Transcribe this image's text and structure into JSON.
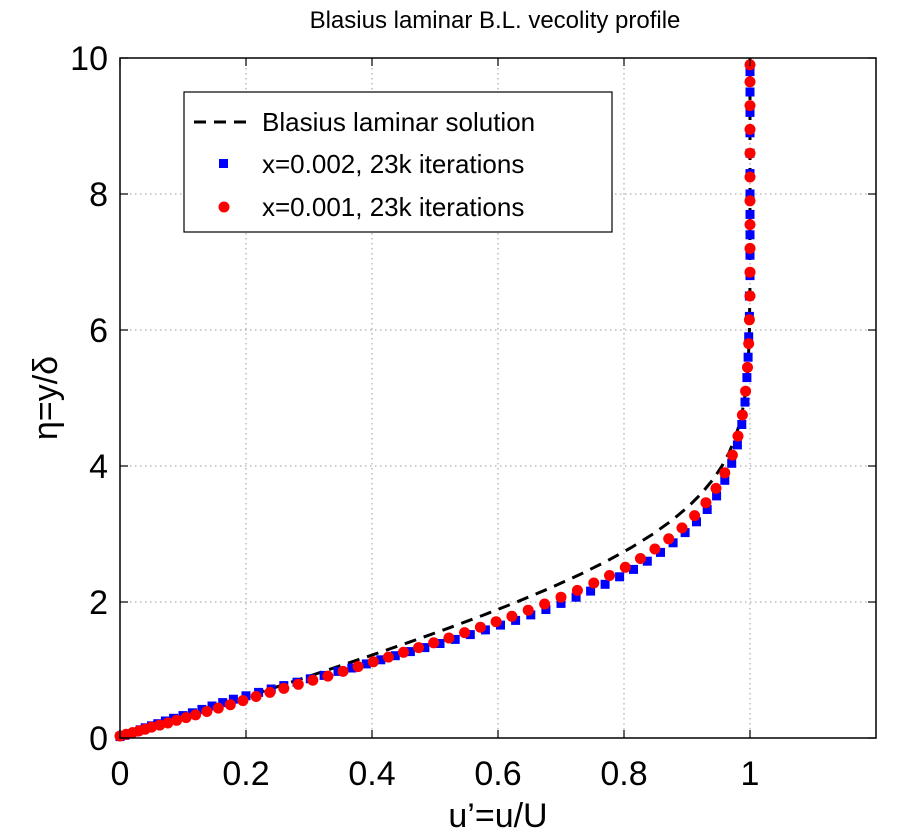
{
  "chart_data": {
    "type": "line",
    "title": "Blasius laminar B.L. vecolity profile",
    "xlabel": "u’=u/U",
    "ylabel": "η=y/δ",
    "xlim": [
      0,
      1.2
    ],
    "ylim": [
      0,
      10
    ],
    "x_ticks": [
      0,
      0.2,
      0.4,
      0.6,
      0.8,
      1
    ],
    "x_tick_labels": [
      "0",
      "0.2",
      "0.4",
      "0.6",
      "0.8",
      "1"
    ],
    "y_ticks": [
      0,
      2,
      4,
      6,
      8,
      10
    ],
    "y_tick_labels": [
      "0",
      "2",
      "4",
      "6",
      "8",
      "10"
    ],
    "grid": true,
    "legend_position": "top-left",
    "colors": {
      "blasius": "#000000",
      "series_x002": "#0000ff",
      "series_x001": "#ff0000",
      "grid": "#9a9a9a",
      "axis": "#000000"
    },
    "series": [
      {
        "name": "Blasius laminar solution",
        "style": "dashed-line",
        "x": [
          0,
          0.0664,
          0.1328,
          0.1989,
          0.2647,
          0.3298,
          0.3938,
          0.4563,
          0.5168,
          0.5748,
          0.6298,
          0.6813,
          0.729,
          0.7725,
          0.8115,
          0.846,
          0.8761,
          0.9018,
          0.9233,
          0.9411,
          0.9555,
          0.967,
          0.9759,
          0.9827,
          0.9878,
          0.9915,
          0.9942,
          0.9962,
          0.9975,
          0.9984,
          0.999,
          0.9994,
          0.9996,
          0.9998,
          0.9999,
          0.9999,
          1.0,
          1.0
        ],
        "y": [
          0,
          0.2,
          0.4,
          0.6,
          0.8,
          1.0,
          1.2,
          1.4,
          1.6,
          1.8,
          2.0,
          2.2,
          2.4,
          2.6,
          2.8,
          3.0,
          3.2,
          3.4,
          3.6,
          3.8,
          4.0,
          4.2,
          4.4,
          4.6,
          4.8,
          5.0,
          5.2,
          5.4,
          5.6,
          5.8,
          6.0,
          6.2,
          6.4,
          6.6,
          6.8,
          7.0,
          8.0,
          10.0
        ]
      },
      {
        "name": "x=0.002, 23k iterations",
        "style": "square-markers",
        "x": [
          0,
          0.008,
          0.016,
          0.024,
          0.032,
          0.04,
          0.05,
          0.06,
          0.072,
          0.085,
          0.1,
          0.115,
          0.13,
          0.146,
          0.163,
          0.18,
          0.2,
          0.22,
          0.24,
          0.26,
          0.281,
          0.302,
          0.324,
          0.346,
          0.368,
          0.391,
          0.414,
          0.437,
          0.461,
          0.484,
          0.508,
          0.532,
          0.556,
          0.58,
          0.604,
          0.628,
          0.652,
          0.676,
          0.7,
          0.724,
          0.747,
          0.77,
          0.793,
          0.815,
          0.837,
          0.858,
          0.878,
          0.897,
          0.915,
          0.932,
          0.947,
          0.96,
          0.971,
          0.98,
          0.987,
          0.992,
          0.995,
          0.997,
          0.998,
          0.999,
          0.999,
          1.0,
          1.0,
          1.0,
          1.0,
          1.0,
          1.0,
          1.0,
          1.0,
          1.0,
          1.0,
          1.0
        ],
        "y": [
          0.02,
          0.04,
          0.065,
          0.09,
          0.12,
          0.15,
          0.18,
          0.21,
          0.25,
          0.29,
          0.33,
          0.37,
          0.42,
          0.47,
          0.52,
          0.57,
          0.62,
          0.67,
          0.72,
          0.77,
          0.82,
          0.87,
          0.92,
          0.98,
          1.03,
          1.09,
          1.15,
          1.21,
          1.27,
          1.33,
          1.39,
          1.45,
          1.52,
          1.59,
          1.66,
          1.73,
          1.81,
          1.89,
          1.98,
          2.07,
          2.16,
          2.26,
          2.37,
          2.48,
          2.6,
          2.73,
          2.87,
          3.02,
          3.18,
          3.36,
          3.56,
          3.79,
          4.04,
          4.31,
          4.61,
          4.94,
          5.3,
          5.6,
          5.9,
          6.2,
          6.5,
          6.8,
          7.1,
          7.4,
          7.7,
          8.0,
          8.3,
          8.6,
          8.9,
          9.2,
          9.5,
          9.8
        ]
      },
      {
        "name": "x=0.001, 23k iterations",
        "style": "circle-markers",
        "x": [
          0,
          0.01,
          0.02,
          0.03,
          0.04,
          0.05,
          0.063,
          0.076,
          0.09,
          0.105,
          0.12,
          0.138,
          0.156,
          0.175,
          0.195,
          0.216,
          0.238,
          0.26,
          0.283,
          0.306,
          0.33,
          0.354,
          0.378,
          0.402,
          0.426,
          0.45,
          0.474,
          0.498,
          0.522,
          0.547,
          0.572,
          0.597,
          0.622,
          0.648,
          0.674,
          0.7,
          0.726,
          0.752,
          0.777,
          0.802,
          0.826,
          0.849,
          0.871,
          0.892,
          0.912,
          0.93,
          0.946,
          0.96,
          0.972,
          0.981,
          0.988,
          0.993,
          0.996,
          0.998,
          0.999,
          1.0,
          1.0,
          1.0,
          1.0,
          1.0,
          1.0,
          1.0,
          1.0,
          1.0,
          1.0,
          1.0
        ],
        "y": [
          0.03,
          0.055,
          0.08,
          0.105,
          0.13,
          0.16,
          0.19,
          0.22,
          0.26,
          0.3,
          0.34,
          0.39,
          0.44,
          0.49,
          0.55,
          0.61,
          0.67,
          0.73,
          0.79,
          0.85,
          0.91,
          0.98,
          1.05,
          1.12,
          1.19,
          1.26,
          1.33,
          1.4,
          1.47,
          1.55,
          1.63,
          1.71,
          1.79,
          1.88,
          1.97,
          2.07,
          2.17,
          2.28,
          2.39,
          2.51,
          2.64,
          2.78,
          2.93,
          3.09,
          3.27,
          3.46,
          3.67,
          3.9,
          4.16,
          4.44,
          4.75,
          5.1,
          5.45,
          5.8,
          6.15,
          6.5,
          6.85,
          7.2,
          7.55,
          7.9,
          8.25,
          8.6,
          8.95,
          9.3,
          9.65,
          9.9
        ]
      }
    ]
  }
}
